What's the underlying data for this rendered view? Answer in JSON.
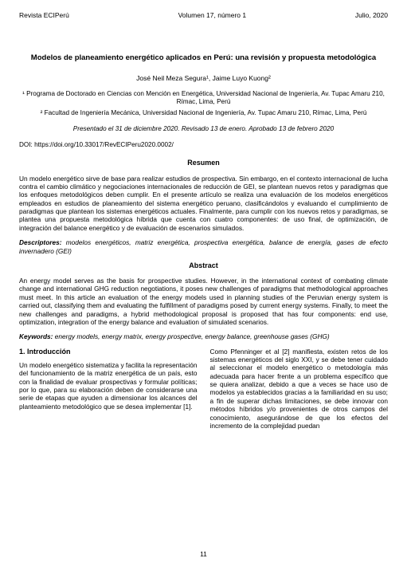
{
  "header": {
    "journal": "Revista ECIPerú",
    "volume": "Volumen 17, número 1",
    "date": "Julio, 2020"
  },
  "title": "Modelos de planeamiento energético aplicados en Perú: una revisión y propuesta metodológica",
  "authors": "José Neil Meza Segura¹, Jaime Luyo Kuong²",
  "affiliations": {
    "a1": "¹ Programa de Doctorado en Ciencias con Mención en Energética, Universidad Nacional de Ingeniería, Av. Tupac Amaru 210, Rímac, Lima, Perú",
    "a2": "² Facultad de Ingeniería Mecánica, Universidad Nacional de Ingeniería, Av. Tupac Amaru 210, Rímac, Lima, Perú"
  },
  "dates": "Presentado el 31 de diciembre 2020. Revisado 13 de enero. Aprobado 13 de febrero 2020",
  "doi": "DOI: https://doi.org/10.33017/RevECIPeru2020.0002/",
  "resumen": {
    "heading": "Resumen",
    "body": "Un modelo energético sirve de base para realizar estudios de prospectiva. Sin embargo, en el contexto internacional de lucha contra el cambio climático y negociaciones internacionales de reducción de GEI, se plantean nuevos retos y paradigmas que los enfoques metodológicos deben cumplir. En el presente artículo se realiza una evaluación de los modelos energéticos empleados en estudios de planeamiento del sistema energético peruano, clasificándolos y evaluando el cumplimiento de paradigmas que plantean los sistemas energéticos actuales. Finalmente, para cumplir con los nuevos retos y paradigmas, se plantea una propuesta metodológica híbrida que cuenta con cuatro componentes: de uso final, de optimización, de integración del balance energético y de evaluación de escenarios simulados.",
    "desc_label": "Descriptores:",
    "desc_body": " modelos energéticos, matriz energética, prospectiva energética, balance de energía, gases de efecto invernadero (GEI)"
  },
  "abstract": {
    "heading": "Abstract",
    "body": "An energy model serves as the basis for prospective studies. However, in the international context of combating climate change and international GHG reduction negotiations, it poses new challenges of paradigms that methodological approaches must meet. In this article an evaluation of the energy models used in planning studies of the Peruvian energy system is carried out, classifying them and evaluating the fulfillment of paradigms posed by current energy systems. Finally, to meet the new challenges and paradigms, a hybrid methodological proposal is proposed that has four components: end use, optimization, integration of the energy balance and evaluation of simulated scenarios.",
    "kw_label": "Keywords:",
    "kw_body": " energy models, energy matrix, energy prospective, energy balance, greenhouse gases (GHG)"
  },
  "intro": {
    "heading": "1. Introducción",
    "col1": "Un modelo energético sistematiza y facilita la representación del funcionamiento de la matriz energética de un país, esto con la finalidad de evaluar prospectivas y formular políticas; por lo que, para su elaboración deben de considerarse una serie de etapas que ayuden a dimensionar los alcances del planteamiento metodológico que se desea implementar [1].",
    "col2": "Como Pfenninger et al [2] manifiesta, existen retos de los sistemas energéticos del siglo XXI, y se debe tener cuidado al seleccionar el modelo energético o metodología más adecuada para hacer frente a un problema específico que se quiera analizar, debido a que a veces se hace uso de modelos ya establecidos gracias a la familiaridad en su uso; a fin de superar dichas limitaciones, se debe innovar con métodos híbridos y/o provenientes de otros campos del conocimiento, asegurándose de que los efectos del incremento de la complejidad puedan"
  },
  "page_number": "11"
}
